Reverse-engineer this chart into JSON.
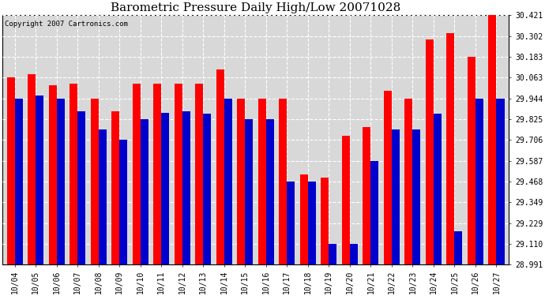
{
  "title": "Barometric Pressure Daily High/Low 20071028",
  "copyright": "Copyright 2007 Cartronics.com",
  "dates": [
    "10/04",
    "10/05",
    "10/06",
    "10/07",
    "10/08",
    "10/09",
    "10/10",
    "10/11",
    "10/12",
    "10/13",
    "10/14",
    "10/15",
    "10/16",
    "10/17",
    "10/18",
    "10/19",
    "10/20",
    "10/21",
    "10/22",
    "10/23",
    "10/24",
    "10/25",
    "10/26",
    "10/27"
  ],
  "high": [
    30.063,
    30.083,
    30.02,
    30.03,
    29.944,
    29.87,
    30.03,
    30.03,
    30.03,
    30.03,
    30.11,
    29.944,
    29.944,
    29.944,
    29.51,
    29.49,
    29.73,
    29.78,
    29.99,
    29.944,
    30.28,
    30.32,
    30.183,
    30.421
  ],
  "low": [
    29.944,
    29.96,
    29.944,
    29.87,
    29.765,
    29.706,
    29.825,
    29.86,
    29.87,
    29.855,
    29.944,
    29.825,
    29.825,
    29.468,
    29.468,
    29.11,
    29.11,
    29.587,
    29.765,
    29.765,
    29.855,
    29.183,
    29.944,
    29.944
  ],
  "high_color": "#ff0000",
  "low_color": "#0000cc",
  "bg_color": "#ffffff",
  "plot_bg_color": "#d8d8d8",
  "grid_color": "#ffffff",
  "ymin": 28.991,
  "ymax": 30.421,
  "yticks": [
    28.991,
    29.11,
    29.229,
    29.349,
    29.468,
    29.587,
    29.706,
    29.825,
    29.944,
    30.063,
    30.183,
    30.302,
    30.421
  ],
  "title_fontsize": 11,
  "tick_fontsize": 7,
  "fig_width": 6.9,
  "fig_height": 3.75,
  "dpi": 100
}
